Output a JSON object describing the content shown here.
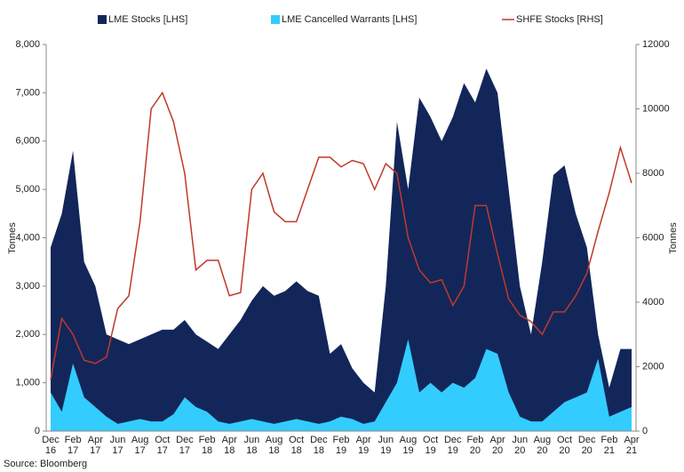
{
  "chart_data": {
    "type": "area-line",
    "categories": [
      "Dec 16",
      null,
      "Feb 17",
      null,
      "Apr 17",
      null,
      "Jun 17",
      null,
      "Aug 17",
      null,
      "Oct 17",
      null,
      "Dec 17",
      null,
      "Feb 18",
      null,
      "Apr 18",
      null,
      "Jun 18",
      null,
      "Aug 18",
      null,
      "Oct 18",
      null,
      "Dec 18",
      null,
      "Feb 19",
      null,
      "Apr 19",
      null,
      "Jun 19",
      null,
      "Aug 19",
      null,
      "Oct 19",
      null,
      "Dec 19",
      null,
      "Feb 20",
      null,
      "Apr 20",
      null,
      "Jun 20",
      null,
      "Aug 20",
      null,
      "Oct 20",
      null,
      "Dec 20",
      null,
      "Feb 21",
      null,
      "Apr 21"
    ],
    "series": [
      {
        "name": "LME Stocks [LHS]",
        "color": "#13265a",
        "kind": "area",
        "values": [
          3800,
          4500,
          5800,
          3500,
          3000,
          2000,
          1900,
          1800,
          1900,
          2000,
          2100,
          2100,
          2300,
          2000,
          1850,
          1700,
          2000,
          2300,
          2700,
          3000,
          2800,
          2900,
          3100,
          2900,
          2800,
          1600,
          1800,
          1300,
          1000,
          800,
          3000,
          6400,
          5000,
          6900,
          6500,
          6000,
          6500,
          7200,
          6800,
          7500,
          7000,
          5000,
          3000,
          2000,
          3500,
          5300,
          5500,
          4500,
          3800,
          2000,
          900,
          1700,
          1700
        ]
      },
      {
        "name": "LME Cancelled Warrants [LHS]",
        "color": "#33ccff",
        "kind": "area",
        "values": [
          800,
          400,
          1400,
          700,
          500,
          300,
          150,
          200,
          250,
          200,
          200,
          350,
          700,
          500,
          400,
          200,
          150,
          200,
          250,
          200,
          150,
          200,
          250,
          200,
          150,
          200,
          300,
          250,
          150,
          200,
          600,
          1000,
          1900,
          800,
          1000,
          800,
          1000,
          900,
          1100,
          1700,
          1600,
          800,
          300,
          200,
          200,
          400,
          600,
          700,
          800,
          1500,
          300,
          400,
          500
        ]
      },
      {
        "name": "SHFE Stocks [RHS]",
        "color": "#c0392b",
        "kind": "line",
        "axis": "y2",
        "values": [
          1600,
          3500,
          3000,
          2200,
          2100,
          2300,
          3800,
          4200,
          6500,
          10000,
          10500,
          9600,
          8000,
          5000,
          5300,
          5300,
          4200,
          4300,
          7500,
          8000,
          6800,
          6500,
          6500,
          7500,
          8500,
          8500,
          8200,
          8400,
          8300,
          7500,
          8300,
          8000,
          6000,
          5000,
          4600,
          4700,
          3900,
          4500,
          7000,
          7000,
          5500,
          4100,
          3600,
          3400,
          3000,
          3700,
          3700,
          4200,
          4900,
          6200,
          7400,
          8800,
          7700
        ]
      }
    ],
    "ylabel": "Tonnes",
    "y2label": "Tonnes",
    "ylim": [
      0,
      8000
    ],
    "yticks": [
      0,
      {
        "value": 1000,
        "label": "1,000"
      },
      {
        "value": 2000,
        "label": "2,000"
      },
      {
        "value": 3000,
        "label": "3,000"
      },
      {
        "value": 4000,
        "label": "4,000"
      },
      {
        "value": 5000,
        "label": "5,000"
      },
      {
        "value": 6000,
        "label": "6,000"
      },
      {
        "value": 7000,
        "label": "7,000"
      },
      {
        "value": 8000,
        "label": "8,000"
      }
    ],
    "y2lim": [
      0,
      12000
    ],
    "y2ticks": [
      0,
      2000,
      4000,
      6000,
      8000,
      10000,
      12000
    ],
    "source": "Source: Bloomberg"
  }
}
